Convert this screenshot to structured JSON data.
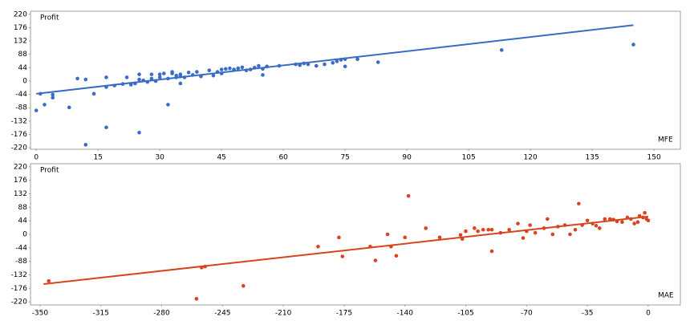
{
  "chart_data": [
    {
      "type": "scatter",
      "y_label": "Profit",
      "x_label": "MFE",
      "xlim": [
        -1.4,
        156.4
      ],
      "ylim": [
        -225,
        230
      ],
      "xticks": [
        0,
        15,
        30,
        45,
        60,
        75,
        90,
        105,
        120,
        135,
        150
      ],
      "yticks": [
        220,
        176,
        132,
        88,
        44,
        0,
        -44,
        -88,
        -132,
        -176,
        -220
      ],
      "grid": false,
      "points": {
        "color": "#3a6cc6",
        "x": [
          0,
          1,
          2,
          4,
          4,
          8,
          10,
          12,
          12,
          14,
          17,
          17,
          17,
          19,
          21,
          22,
          23,
          24,
          25,
          25,
          25,
          26,
          27,
          28,
          28,
          29,
          30,
          30,
          31,
          32,
          32,
          33,
          33,
          34,
          34,
          35,
          35,
          35,
          36,
          37,
          38,
          39,
          40,
          42,
          43,
          44,
          45,
          45,
          46,
          47,
          48,
          49,
          50,
          51,
          52,
          53,
          54,
          55,
          55,
          56,
          59,
          63,
          64,
          65,
          66,
          68,
          70,
          72,
          73,
          74,
          75,
          75,
          78,
          83,
          113,
          145
        ],
        "y": [
          -97,
          -42,
          -78,
          -55,
          -45,
          -87,
          8,
          -210,
          5,
          -42,
          12,
          -153,
          -20,
          -15,
          -10,
          12,
          -12,
          -8,
          22,
          5,
          -170,
          2,
          -3,
          22,
          8,
          0,
          22,
          12,
          25,
          8,
          -78,
          30,
          25,
          18,
          12,
          22,
          -8,
          15,
          12,
          28,
          20,
          30,
          15,
          35,
          18,
          30,
          38,
          25,
          40,
          42,
          38,
          42,
          45,
          35,
          38,
          44,
          50,
          40,
          20,
          48,
          50,
          55,
          52,
          58,
          55,
          50,
          55,
          60,
          65,
          70,
          48,
          72,
          72,
          62,
          102,
          120
        ]
      },
      "trend": {
        "color": "#3a6cc6",
        "x": [
          0,
          145
        ],
        "y": [
          -42,
          184
        ]
      }
    },
    {
      "type": "scatter",
      "y_label": "Profit",
      "x_label": "MAE",
      "xlim": [
        -355.5,
        18.5
      ],
      "ylim": [
        -230,
        230
      ],
      "xticks": [
        -350,
        -315,
        -280,
        -245,
        -210,
        -175,
        -140,
        -105,
        -70,
        -35,
        0
      ],
      "yticks": [
        220,
        176,
        132,
        88,
        44,
        0,
        -44,
        -88,
        -132,
        -176,
        -220
      ],
      "grid": false,
      "points": {
        "color": "#d9441c",
        "x": [
          -345,
          -255,
          -257,
          -260,
          -233,
          -190,
          -178,
          -176,
          -160,
          -157,
          -150,
          -148,
          -145,
          -140,
          -138,
          -128,
          -120,
          -108,
          -107,
          -105,
          -100,
          -98,
          -95,
          -92,
          -90,
          -90,
          -85,
          -80,
          -75,
          -72,
          -70,
          -68,
          -65,
          -60,
          -58,
          -55,
          -52,
          -48,
          -45,
          -42,
          -40,
          -38,
          -35,
          -32,
          -30,
          -28,
          -25,
          -22,
          -20,
          -18,
          -15,
          -12,
          -10,
          -8,
          -5,
          -3,
          -2,
          0,
          -6,
          -1
        ],
        "y": [
          -152,
          -105,
          -108,
          -210,
          -168,
          -40,
          -10,
          -72,
          -40,
          -85,
          0,
          -40,
          -70,
          -10,
          125,
          20,
          -10,
          -2,
          -15,
          10,
          20,
          10,
          15,
          15,
          15,
          -55,
          5,
          15,
          35,
          -12,
          10,
          30,
          5,
          20,
          50,
          0,
          25,
          30,
          0,
          15,
          100,
          30,
          45,
          35,
          28,
          20,
          50,
          50,
          48,
          42,
          40,
          55,
          50,
          35,
          60,
          55,
          70,
          45,
          40,
          50
        ]
      },
      "trend": {
        "color": "#d9441c",
        "x": [
          -348,
          0
        ],
        "y": [
          -162,
          58
        ]
      }
    }
  ]
}
